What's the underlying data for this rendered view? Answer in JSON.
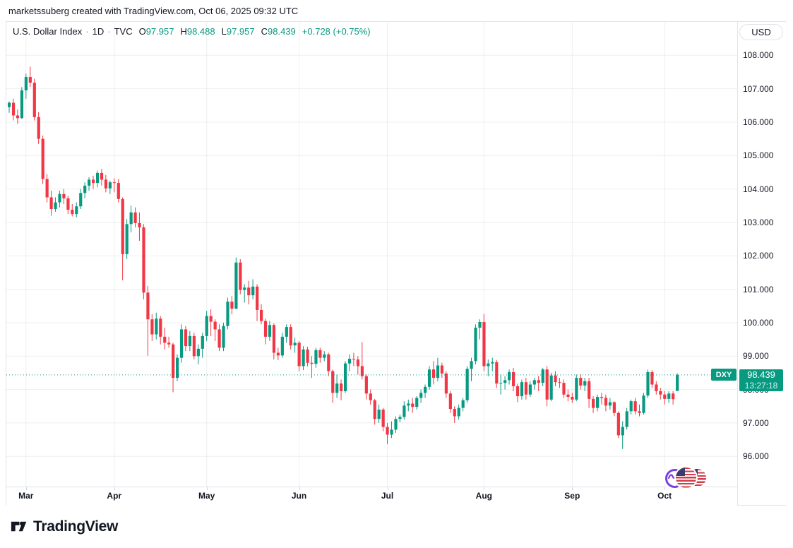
{
  "topbar": {
    "attribution": "marketssuberg created with TradingView.com, Oct 06, 2025 09:32 UTC"
  },
  "legend": {
    "title": "U.S. Dollar Index",
    "separator": "·",
    "interval": "1D",
    "exchange": "TVC",
    "ohlc": [
      {
        "label": "O",
        "value": "97.957"
      },
      {
        "label": "H",
        "value": "98.488"
      },
      {
        "label": "L",
        "value": "97.957"
      },
      {
        "label": "C",
        "value": "98.439"
      }
    ],
    "change": "+0.728 (+0.75%)"
  },
  "currency_button": "USD",
  "price_marker": {
    "symbol": "DXY",
    "price": "98.439",
    "countdown": "13:27:18"
  },
  "watermark": {
    "logo_text": "TradingView"
  },
  "source_icons": [
    {
      "name": "tvc-logo-circle"
    },
    {
      "name": "us-flag-circle"
    },
    {
      "name": "us-flag-circle"
    }
  ],
  "colors": {
    "up": "#089981",
    "down": "#F23645",
    "grid": "rgba(42,46,57,0.08)",
    "border": "#e0e3eb",
    "text": "#131722",
    "muted": "#787b86",
    "tvc_purple": "#7b3fe4",
    "flag_red": "#cf3e4a",
    "flag_blue": "#3c3b6e"
  },
  "chart_data": {
    "type": "candlestick",
    "title": "U.S. Dollar Index",
    "symbol": "TVC:DXY",
    "interval": "1D",
    "current_price": 98.439,
    "ylim": [
      96,
      108
    ],
    "grid": true,
    "y_ticks": [
      "108.000",
      "107.000",
      "106.000",
      "105.000",
      "104.000",
      "103.000",
      "102.000",
      "101.000",
      "100.000",
      "99.000",
      "98.000",
      "97.000",
      "96.000"
    ],
    "x_ticks": [
      "Mar",
      "Apr",
      "May",
      "Jun",
      "Jul",
      "Aug",
      "Sep",
      "Oct"
    ],
    "months": [
      {
        "label": "Mar",
        "index": 4
      },
      {
        "label": "Apr",
        "index": 25
      },
      {
        "label": "May",
        "index": 47
      },
      {
        "label": "Jun",
        "index": 69
      },
      {
        "label": "Jul",
        "index": 90
      },
      {
        "label": "Aug",
        "index": 113
      },
      {
        "label": "Sep",
        "index": 134
      },
      {
        "label": "Oct",
        "index": 156
      }
    ],
    "candle_fields": [
      "date",
      "open",
      "high",
      "low",
      "close"
    ],
    "candles": [
      [
        "Feb 25",
        106.45,
        106.62,
        106.28,
        106.58
      ],
      [
        "Feb 26",
        106.58,
        106.7,
        106.05,
        106.2
      ],
      [
        "Feb 27",
        106.2,
        106.38,
        105.95,
        106.12
      ],
      [
        "Feb 28",
        106.12,
        107.05,
        106.1,
        106.95
      ],
      [
        "Mar 3",
        106.95,
        107.45,
        106.7,
        107.35
      ],
      [
        "Mar 4",
        107.35,
        107.66,
        107.05,
        107.18
      ],
      [
        "Mar 5",
        107.18,
        107.3,
        106.05,
        106.15
      ],
      [
        "Mar 6",
        106.15,
        106.3,
        105.35,
        105.5
      ],
      [
        "Mar 7",
        105.5,
        105.6,
        104.15,
        104.3
      ],
      [
        "Mar 10",
        104.3,
        104.45,
        103.6,
        103.75
      ],
      [
        "Mar 11",
        103.75,
        103.95,
        103.2,
        103.4
      ],
      [
        "Mar 12",
        103.4,
        103.75,
        103.32,
        103.6
      ],
      [
        "Mar 13",
        103.6,
        103.95,
        103.45,
        103.85
      ],
      [
        "Mar 14",
        103.85,
        104.0,
        103.55,
        103.72
      ],
      [
        "Mar 17",
        103.72,
        103.8,
        103.25,
        103.38
      ],
      [
        "Mar 18",
        103.38,
        103.55,
        103.18,
        103.25
      ],
      [
        "Mar 19",
        103.25,
        103.6,
        103.15,
        103.48
      ],
      [
        "Mar 20",
        103.48,
        104.0,
        103.4,
        103.88
      ],
      [
        "Mar 21",
        103.88,
        104.2,
        103.72,
        104.1
      ],
      [
        "Mar 24",
        104.1,
        104.35,
        103.95,
        104.28
      ],
      [
        "Mar 25",
        104.28,
        104.4,
        104.0,
        104.18
      ],
      [
        "Mar 26",
        104.18,
        104.55,
        104.05,
        104.48
      ],
      [
        "Mar 27",
        104.48,
        104.6,
        104.1,
        104.28
      ],
      [
        "Mar 28",
        104.28,
        104.42,
        103.9,
        104.02
      ],
      [
        "Mar 31",
        104.02,
        104.25,
        103.85,
        104.2
      ],
      [
        "Apr 1",
        104.2,
        104.32,
        103.9,
        104.18
      ],
      [
        "Apr 2",
        104.18,
        104.3,
        103.6,
        103.7
      ],
      [
        "Apr 3",
        103.7,
        103.75,
        101.27,
        102.05
      ],
      [
        "Apr 4",
        102.05,
        103.1,
        101.9,
        102.95
      ],
      [
        "Apr 7",
        102.95,
        103.5,
        102.7,
        103.3
      ],
      [
        "Apr 8",
        103.3,
        103.45,
        102.85,
        102.98
      ],
      [
        "Apr 9",
        102.98,
        103.3,
        102.45,
        102.85
      ],
      [
        "Apr 10",
        102.85,
        102.95,
        100.7,
        100.9
      ],
      [
        "Apr 11",
        100.9,
        101.1,
        99.01,
        100.1
      ],
      [
        "Apr 14",
        100.1,
        100.25,
        99.45,
        99.65
      ],
      [
        "Apr 15",
        99.65,
        100.3,
        99.5,
        100.12
      ],
      [
        "Apr 16",
        100.12,
        100.2,
        99.35,
        99.58
      ],
      [
        "Apr 17",
        99.58,
        99.85,
        99.2,
        99.4
      ],
      [
        "Apr 18",
        99.4,
        99.58,
        99.25,
        99.35
      ],
      [
        "Apr 21",
        99.35,
        99.4,
        97.92,
        98.35
      ],
      [
        "Apr 22",
        98.35,
        99.05,
        98.25,
        98.95
      ],
      [
        "Apr 23",
        98.95,
        99.95,
        98.8,
        99.8
      ],
      [
        "Apr 24",
        99.8,
        99.9,
        99.15,
        99.3
      ],
      [
        "Apr 25",
        99.3,
        99.75,
        99.15,
        99.6
      ],
      [
        "Apr 28",
        99.6,
        99.7,
        98.9,
        99.0
      ],
      [
        "Apr 29",
        99.0,
        99.35,
        98.75,
        99.22
      ],
      [
        "Apr 30",
        99.22,
        99.7,
        98.95,
        99.6
      ],
      [
        "May 1",
        99.6,
        100.35,
        99.45,
        100.2
      ],
      [
        "May 2",
        100.2,
        100.4,
        99.6,
        100.03
      ],
      [
        "May 5",
        100.03,
        100.1,
        99.45,
        99.8
      ],
      [
        "May 6",
        99.8,
        99.95,
        99.15,
        99.25
      ],
      [
        "May 7",
        99.25,
        100.0,
        99.15,
        99.9
      ],
      [
        "May 8",
        99.9,
        100.75,
        99.8,
        100.63
      ],
      [
        "May 9",
        100.63,
        100.8,
        100.25,
        100.42
      ],
      [
        "May 12",
        100.42,
        101.95,
        100.4,
        101.8
      ],
      [
        "May 13",
        101.8,
        101.9,
        100.85,
        100.98
      ],
      [
        "May 14",
        100.98,
        101.15,
        100.6,
        101.05
      ],
      [
        "May 15",
        101.05,
        101.25,
        100.55,
        100.82
      ],
      [
        "May 16",
        100.82,
        101.3,
        100.7,
        101.08
      ],
      [
        "May 19",
        101.08,
        101.15,
        100.05,
        100.38
      ],
      [
        "May 20",
        100.38,
        100.55,
        99.95,
        100.05
      ],
      [
        "May 21",
        100.05,
        100.12,
        99.35,
        99.58
      ],
      [
        "May 22",
        99.58,
        100.05,
        99.45,
        99.93
      ],
      [
        "May 23",
        99.93,
        99.98,
        98.9,
        99.1
      ],
      [
        "May 26",
        99.1,
        99.25,
        98.88,
        99.02
      ],
      [
        "May 27",
        99.02,
        99.7,
        98.95,
        99.58
      ],
      [
        "May 28",
        99.58,
        99.95,
        99.4,
        99.87
      ],
      [
        "May 29",
        99.87,
        99.95,
        99.2,
        99.32
      ],
      [
        "May 30",
        99.32,
        99.55,
        99.1,
        99.4
      ],
      [
        "Jun 2",
        99.4,
        99.45,
        98.55,
        98.7
      ],
      [
        "Jun 3",
        98.7,
        99.3,
        98.58,
        99.2
      ],
      [
        "Jun 4",
        99.2,
        99.28,
        98.7,
        98.8
      ],
      [
        "Jun 5",
        98.8,
        99.0,
        98.35,
        98.77
      ],
      [
        "Jun 6",
        98.77,
        99.25,
        98.65,
        99.18
      ],
      [
        "Jun 9",
        99.18,
        99.25,
        98.8,
        98.95
      ],
      [
        "Jun 10",
        98.95,
        99.15,
        98.85,
        99.05
      ],
      [
        "Jun 11",
        99.05,
        99.1,
        98.4,
        98.55
      ],
      [
        "Jun 12",
        98.55,
        98.6,
        97.6,
        97.9
      ],
      [
        "Jun 13",
        97.9,
        98.45,
        97.75,
        98.18
      ],
      [
        "Jun 16",
        98.18,
        98.3,
        97.68,
        97.95
      ],
      [
        "Jun 17",
        97.95,
        98.85,
        97.9,
        98.78
      ],
      [
        "Jun 18",
        98.78,
        99.05,
        98.55,
        98.92
      ],
      [
        "Jun 19",
        98.92,
        99.1,
        98.7,
        98.9
      ],
      [
        "Jun 20",
        98.9,
        99.0,
        98.45,
        98.7
      ],
      [
        "Jun 23",
        98.7,
        99.42,
        98.3,
        98.4
      ],
      [
        "Jun 24",
        98.4,
        98.45,
        97.7,
        97.88
      ],
      [
        "Jun 25",
        97.88,
        98.0,
        97.55,
        97.68
      ],
      [
        "Jun 26",
        97.68,
        97.72,
        96.95,
        97.12
      ],
      [
        "Jun 27",
        97.12,
        97.55,
        97.0,
        97.4
      ],
      [
        "Jun 30",
        97.4,
        97.45,
        96.75,
        96.88
      ],
      [
        "Jul 1",
        96.88,
        97.0,
        96.37,
        96.65
      ],
      [
        "Jul 2",
        96.65,
        97.05,
        96.55,
        96.8
      ],
      [
        "Jul 3",
        96.8,
        97.2,
        96.7,
        97.12
      ],
      [
        "Jul 4",
        97.12,
        97.25,
        97.02,
        97.18
      ],
      [
        "Jul 7",
        97.18,
        97.65,
        97.1,
        97.52
      ],
      [
        "Jul 8",
        97.52,
        97.7,
        97.35,
        97.58
      ],
      [
        "Jul 9",
        97.58,
        97.75,
        97.3,
        97.48
      ],
      [
        "Jul 10",
        97.48,
        97.8,
        97.4,
        97.75
      ],
      [
        "Jul 11",
        97.75,
        98.0,
        97.6,
        97.9
      ],
      [
        "Jul 14",
        97.9,
        98.15,
        97.75,
        98.08
      ],
      [
        "Jul 15",
        98.08,
        98.7,
        98.0,
        98.6
      ],
      [
        "Jul 16",
        98.6,
        98.85,
        98.15,
        98.35
      ],
      [
        "Jul 17",
        98.35,
        98.95,
        98.25,
        98.72
      ],
      [
        "Jul 18",
        98.72,
        98.8,
        98.35,
        98.48
      ],
      [
        "Jul 21",
        98.48,
        98.55,
        97.75,
        97.88
      ],
      [
        "Jul 22",
        97.88,
        97.95,
        97.3,
        97.42
      ],
      [
        "Jul 23",
        97.42,
        97.5,
        97.0,
        97.2
      ],
      [
        "Jul 24",
        97.2,
        97.55,
        97.1,
        97.45
      ],
      [
        "Jul 25",
        97.45,
        97.75,
        97.35,
        97.68
      ],
      [
        "Jul 28",
        97.68,
        98.7,
        97.6,
        98.62
      ],
      [
        "Jul 29",
        98.62,
        98.95,
        98.25,
        98.85
      ],
      [
        "Jul 30",
        98.85,
        99.95,
        98.75,
        99.85
      ],
      [
        "Jul 31",
        99.85,
        100.1,
        99.5,
        100.02
      ],
      [
        "Aug 1",
        100.02,
        100.26,
        98.55,
        98.7
      ],
      [
        "Aug 4",
        98.7,
        98.9,
        98.4,
        98.78
      ],
      [
        "Aug 5",
        98.78,
        98.95,
        98.55,
        98.82
      ],
      [
        "Aug 6",
        98.82,
        98.88,
        98.05,
        98.18
      ],
      [
        "Aug 7",
        98.18,
        98.45,
        97.85,
        98.2
      ],
      [
        "Aug 8",
        98.2,
        98.4,
        98.0,
        98.28
      ],
      [
        "Aug 11",
        98.28,
        98.6,
        98.15,
        98.52
      ],
      [
        "Aug 12",
        98.52,
        98.65,
        97.95,
        98.1
      ],
      [
        "Aug 13",
        98.1,
        98.18,
        97.62,
        97.8
      ],
      [
        "Aug 14",
        97.8,
        98.3,
        97.7,
        98.22
      ],
      [
        "Aug 15",
        98.22,
        98.35,
        97.7,
        97.85
      ],
      [
        "Aug 18",
        97.85,
        98.25,
        97.78,
        98.15
      ],
      [
        "Aug 19",
        98.15,
        98.35,
        98.0,
        98.28
      ],
      [
        "Aug 20",
        98.28,
        98.4,
        97.95,
        98.2
      ],
      [
        "Aug 21",
        98.2,
        98.65,
        98.1,
        98.6
      ],
      [
        "Aug 22",
        98.6,
        98.7,
        97.5,
        97.7
      ],
      [
        "Aug 25",
        97.7,
        98.5,
        97.65,
        98.42
      ],
      [
        "Aug 26",
        98.42,
        98.55,
        98.1,
        98.22
      ],
      [
        "Aug 27",
        98.22,
        98.35,
        98.05,
        98.2
      ],
      [
        "Aug 28",
        98.2,
        98.3,
        97.75,
        97.85
      ],
      [
        "Aug 29",
        97.85,
        98.0,
        97.65,
        97.78
      ],
      [
        "Sep 1",
        97.78,
        97.9,
        97.6,
        97.7
      ],
      [
        "Sep 2",
        97.7,
        98.45,
        97.65,
        98.35
      ],
      [
        "Sep 3",
        98.35,
        98.45,
        98.0,
        98.12
      ],
      [
        "Sep 4",
        98.12,
        98.35,
        97.95,
        98.25
      ],
      [
        "Sep 5",
        98.25,
        98.35,
        97.45,
        97.72
      ],
      [
        "Sep 8",
        97.72,
        97.8,
        97.3,
        97.45
      ],
      [
        "Sep 9",
        97.45,
        97.85,
        97.35,
        97.78
      ],
      [
        "Sep 10",
        97.78,
        97.9,
        97.55,
        97.75
      ],
      [
        "Sep 11",
        97.75,
        97.85,
        97.35,
        97.52
      ],
      [
        "Sep 12",
        97.52,
        97.75,
        97.4,
        97.62
      ],
      [
        "Sep 15",
        97.62,
        97.65,
        97.2,
        97.3
      ],
      [
        "Sep 16",
        97.3,
        97.35,
        96.55,
        96.63
      ],
      [
        "Sep 17",
        96.63,
        97.05,
        96.22,
        96.88
      ],
      [
        "Sep 18",
        96.88,
        97.45,
        96.8,
        97.35
      ],
      [
        "Sep 19",
        97.35,
        97.7,
        97.25,
        97.65
      ],
      [
        "Sep 22",
        97.65,
        97.75,
        97.25,
        97.35
      ],
      [
        "Sep 23",
        97.35,
        97.55,
        97.2,
        97.3
      ],
      [
        "Sep 24",
        97.3,
        97.9,
        97.25,
        97.82
      ],
      [
        "Sep 25",
        97.82,
        98.6,
        97.75,
        98.52
      ],
      [
        "Sep 26",
        98.52,
        98.58,
        98.05,
        98.15
      ],
      [
        "Sep 29",
        98.15,
        98.25,
        97.85,
        97.95
      ],
      [
        "Sep 30",
        97.95,
        98.05,
        97.7,
        97.85
      ],
      [
        "Oct 1",
        97.85,
        97.95,
        97.55,
        97.72
      ],
      [
        "Oct 2",
        97.72,
        97.95,
        97.6,
        97.88
      ],
      [
        "Oct 3",
        97.88,
        97.95,
        97.55,
        97.71
      ],
      [
        "Oct 6",
        97.957,
        98.488,
        97.957,
        98.439
      ]
    ]
  }
}
